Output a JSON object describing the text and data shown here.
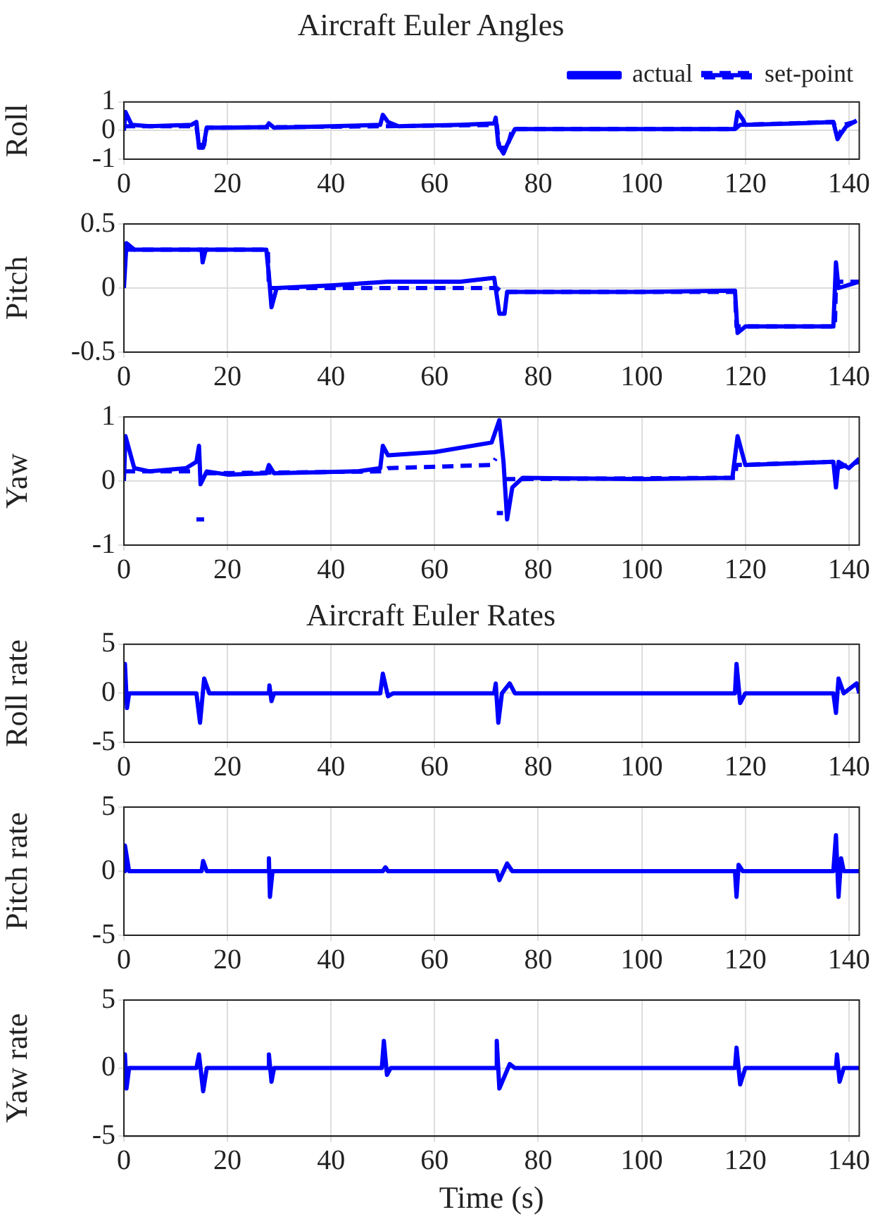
{
  "chart_data": [
    {
      "type": "line",
      "title": "Aircraft Euler Angles",
      "ylabel": "Roll",
      "xlim": [
        0,
        142
      ],
      "xticks": [
        0,
        20,
        40,
        60,
        80,
        100,
        120,
        140
      ],
      "ylim": [
        -1,
        1
      ],
      "yticks": [
        -1,
        0,
        1
      ],
      "grid": true,
      "legend": "top right",
      "marker": "none",
      "series": [
        {
          "name": "actual",
          "color": "#0000ff",
          "line_style": "solid",
          "x": [
            0,
            0.3,
            1.5,
            5,
            13,
            14,
            14.5,
            15.3,
            16,
            20,
            27.5,
            28,
            29,
            40,
            49.5,
            50,
            51,
            53,
            65,
            71.5,
            71.8,
            72.3,
            73.3,
            74,
            75.5,
            100,
            118,
            118.5,
            119.5,
            120,
            130,
            137,
            137.8,
            138.5,
            139.5,
            141.5
          ],
          "values": [
            0,
            0.65,
            0.2,
            0.15,
            0.2,
            0.3,
            -0.6,
            -0.6,
            0.1,
            0.1,
            0.12,
            0.25,
            0.1,
            0.15,
            0.2,
            0.55,
            0.3,
            0.15,
            0.2,
            0.25,
            0.45,
            -0.5,
            -0.8,
            -0.5,
            0.05,
            0.05,
            0.05,
            0.65,
            0.4,
            0.2,
            0.25,
            0.3,
            -0.3,
            -0.1,
            0.15,
            0.35
          ]
        },
        {
          "name": "set-point",
          "color": "#0000ff",
          "line_style": "dashed",
          "x": [
            0,
            14,
            14.5,
            15.5,
            16,
            50,
            72,
            72.5,
            74,
            75,
            118,
            119,
            137,
            138,
            139,
            142
          ],
          "values": [
            0.15,
            0.15,
            -0.5,
            -0.5,
            0.1,
            0.15,
            0.2,
            -0.6,
            -0.6,
            0.05,
            0.05,
            0.2,
            0.3,
            -0.2,
            0.2,
            0.35
          ]
        }
      ]
    },
    {
      "type": "line",
      "ylabel": "Pitch",
      "xlim": [
        0,
        142
      ],
      "xticks": [
        0,
        20,
        40,
        60,
        80,
        100,
        120,
        140
      ],
      "ylim": [
        -0.5,
        0.5
      ],
      "yticks": [
        -0.5,
        0,
        0.5
      ],
      "grid": true,
      "marker": "none",
      "series": [
        {
          "color": "#0000ff",
          "line_style": "solid",
          "x": [
            0,
            0.5,
            2,
            15,
            15.2,
            15.8,
            27.5,
            28,
            28.5,
            29.5,
            40,
            51,
            65,
            71.5,
            72.5,
            73.5,
            74,
            100,
            118,
            118.5,
            120,
            137,
            137.5,
            138,
            142
          ],
          "values": [
            0,
            0.35,
            0.3,
            0.3,
            0.2,
            0.3,
            0.3,
            0.1,
            -0.15,
            0,
            0.02,
            0.05,
            0.05,
            0.08,
            -0.2,
            -0.2,
            -0.03,
            -0.03,
            -0.02,
            -0.35,
            -0.3,
            -0.3,
            0.2,
            0,
            0.05
          ]
        },
        {
          "color": "#0000ff",
          "line_style": "dashed",
          "x": [
            0,
            27.8,
            28,
            72,
            73,
            118,
            118.3,
            137.3,
            137.5,
            142
          ],
          "values": [
            0.3,
            0.3,
            0,
            0,
            -0.03,
            -0.03,
            -0.3,
            -0.3,
            0.05,
            0.05
          ]
        }
      ]
    },
    {
      "type": "line",
      "ylabel": "Yaw",
      "xlim": [
        0,
        142
      ],
      "xticks": [
        0,
        20,
        40,
        60,
        80,
        100,
        120,
        140
      ],
      "ylim": [
        -1,
        1
      ],
      "yticks": [
        -1,
        0,
        1
      ],
      "grid": true,
      "marker": "none",
      "series": [
        {
          "color": "#0000ff",
          "line_style": "solid",
          "x": [
            0,
            0.3,
            2,
            5,
            12,
            14,
            14.5,
            14.8,
            16,
            20,
            27.5,
            28,
            29,
            45,
            49.5,
            50,
            51,
            60,
            71,
            72.5,
            73.3,
            74,
            75,
            77,
            100,
            117.5,
            118.5,
            120,
            137,
            137.5,
            138,
            140,
            142
          ],
          "values": [
            0,
            0.7,
            0.2,
            0.15,
            0.2,
            0.3,
            0.55,
            -0.05,
            0.15,
            0.1,
            0.12,
            0.25,
            0.12,
            0.15,
            0.2,
            0.55,
            0.4,
            0.45,
            0.6,
            0.95,
            0.3,
            -0.6,
            -0.1,
            0.05,
            0.03,
            0.05,
            0.7,
            0.25,
            0.3,
            -0.1,
            0.3,
            0.2,
            0.35
          ]
        },
        {
          "color": "#0000ff",
          "line_style": "dashed",
          "x": [
            0,
            13.8,
            13.9,
            14,
            15.5,
            15.6,
            15.7,
            50,
            51,
            71,
            71.8,
            71.9,
            72,
            73.2,
            73.3,
            73.4,
            118,
            118.3,
            137,
            137.5,
            142
          ],
          "values": [
            0.15,
            0.15,
            null,
            -0.6,
            -0.6,
            null,
            0.12,
            0.15,
            0.2,
            0.25,
            0.35,
            null,
            -0.5,
            -0.5,
            null,
            0.03,
            0.05,
            0.25,
            0.3,
            0.2,
            0.3
          ]
        }
      ]
    },
    {
      "type": "line",
      "title": "Aircraft Euler Rates",
      "ylabel": "Roll rate",
      "xlim": [
        0,
        142
      ],
      "xticks": [
        0,
        20,
        40,
        60,
        80,
        100,
        120,
        140
      ],
      "ylim": [
        -5,
        5
      ],
      "yticks": [
        -5,
        0,
        5
      ],
      "grid": true,
      "marker": "none",
      "series": [
        {
          "color": "#0000ff",
          "line_style": "solid",
          "x": [
            0,
            0.2,
            0.6,
            1,
            14,
            14.7,
            15.5,
            16.5,
            28,
            28.1,
            28.5,
            29,
            49.5,
            50,
            51,
            52,
            71.5,
            71.8,
            72.3,
            73,
            74.5,
            75.5,
            118,
            118.3,
            119,
            120,
            137,
            137.5,
            138,
            139,
            141.5,
            142
          ],
          "values": [
            0,
            3,
            -1.5,
            0,
            0,
            -3,
            1.5,
            0,
            0,
            0.8,
            -0.8,
            0,
            0,
            2,
            -0.3,
            0,
            0,
            1,
            -3,
            0,
            1,
            0,
            0,
            3,
            -1,
            0,
            0,
            -2,
            1.5,
            0,
            1,
            0
          ]
        }
      ]
    },
    {
      "type": "line",
      "ylabel": "Pitch rate",
      "xlim": [
        0,
        142
      ],
      "xticks": [
        0,
        20,
        40,
        60,
        80,
        100,
        120,
        140
      ],
      "ylim": [
        -5,
        5
      ],
      "yticks": [
        -5,
        0,
        5
      ],
      "grid": true,
      "marker": "none",
      "series": [
        {
          "color": "#0000ff",
          "line_style": "solid",
          "x": [
            0,
            0.2,
            1,
            15,
            15.3,
            16,
            27.8,
            28,
            28.2,
            28.7,
            50,
            50.5,
            51,
            72,
            72.5,
            74,
            75,
            118,
            118.3,
            118.7,
            119.5,
            137,
            137.5,
            138,
            138.5,
            139,
            142
          ],
          "values": [
            0,
            2,
            0,
            0,
            0.8,
            0,
            0,
            1,
            -2,
            0,
            0,
            0.3,
            0,
            0,
            -0.7,
            0.6,
            0,
            0,
            -2,
            0.5,
            0,
            0,
            2.8,
            -2,
            1,
            0,
            0
          ]
        }
      ]
    },
    {
      "type": "line",
      "ylabel": "Yaw rate",
      "xlabel": "Time (s)",
      "xlim": [
        0,
        142
      ],
      "xticks": [
        0,
        20,
        40,
        60,
        80,
        100,
        120,
        140
      ],
      "ylim": [
        -5,
        5
      ],
      "yticks": [
        -5,
        0,
        5
      ],
      "grid": true,
      "marker": "none",
      "series": [
        {
          "color": "#0000ff",
          "line_style": "solid",
          "x": [
            0,
            0.2,
            0.5,
            1,
            14,
            14.5,
            15.3,
            16,
            27.8,
            28,
            28.5,
            29,
            49.8,
            50.2,
            50.8,
            51.5,
            71.8,
            72,
            72.5,
            74.5,
            75.5,
            118,
            118.3,
            119,
            120,
            137.5,
            137.7,
            138.2,
            139,
            142
          ],
          "values": [
            0,
            1,
            -1.5,
            0,
            0,
            1,
            -1.7,
            0,
            0,
            1,
            -1,
            0,
            0,
            2,
            -0.5,
            0,
            0,
            2,
            -1.5,
            0.3,
            0,
            0,
            1.5,
            -1.2,
            0,
            0,
            1,
            -1,
            0,
            0
          ]
        }
      ]
    }
  ]
}
